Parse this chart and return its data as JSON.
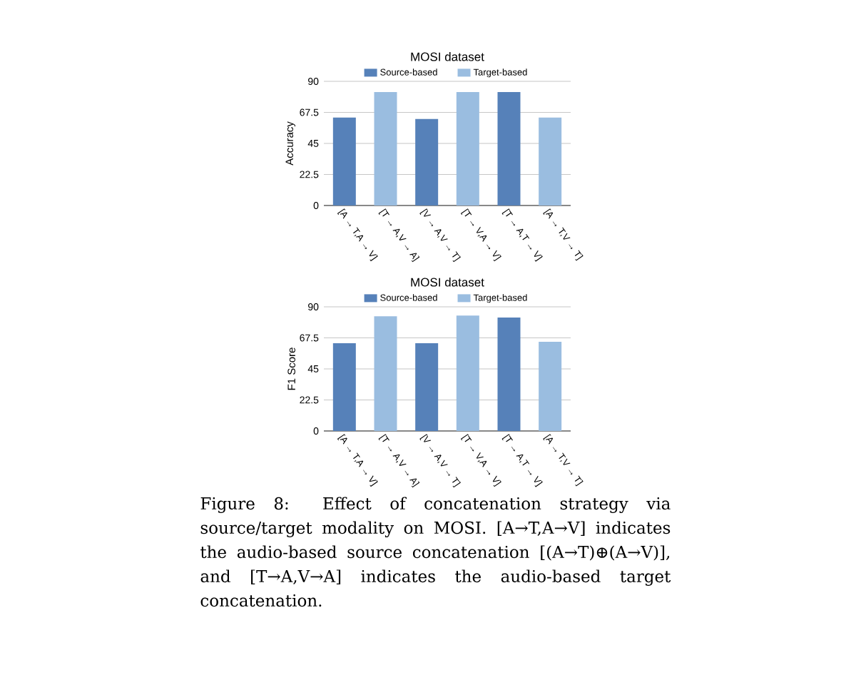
{
  "chart_data": [
    {
      "type": "bar",
      "title": "MOSI dataset",
      "ylabel": "Accuracy",
      "categories": [
        "[A → T,A → V]",
        "[T → A,V → A]",
        "[V → A,V → T]",
        "[T → V,A → V]",
        "[T → A,T → V]",
        "[A → T,V → T]"
      ],
      "series": [
        {
          "name": "Source-based",
          "color": "#5681b9",
          "values": [
            63.7,
            null,
            62.7,
            null,
            82.2,
            null
          ]
        },
        {
          "name": "Target-based",
          "color": "#9abde0",
          "values": [
            null,
            82.2,
            null,
            82.2,
            null,
            63.7
          ]
        }
      ],
      "ylim": [
        0,
        90
      ],
      "yticks": [
        0,
        22.5,
        45,
        67.5,
        90
      ],
      "grid": "y",
      "legend": "top"
    },
    {
      "type": "bar",
      "title": "MOSI dataset",
      "ylabel": "F1 Score",
      "categories": [
        "[A → T,A → V]",
        "[T → A,V → A]",
        "[V → A,V → T]",
        "[T → V,A → V]",
        "[T → A,T → V]",
        "[A → T,V → T]"
      ],
      "series": [
        {
          "name": "Source-based",
          "color": "#5681b9",
          "values": [
            63.6,
            null,
            63.6,
            null,
            82.3,
            null
          ]
        },
        {
          "name": "Target-based",
          "color": "#9abde0",
          "values": [
            null,
            83.1,
            null,
            83.7,
            null,
            64.6
          ]
        }
      ],
      "ylim": [
        0,
        90
      ],
      "yticks": [
        0,
        22.5,
        45,
        67.5,
        90
      ],
      "grid": "y",
      "legend": "top",
      "annotations": [
        "Figure 8:  Effect of concatenation strategy via source/target modality on MOSI. [A→T,A→V] indicates the audio-based source concatenation [(A→T)⊕(A→V)], and [T→A,V→A] indicates the audio-based target concatenation."
      ]
    }
  ]
}
